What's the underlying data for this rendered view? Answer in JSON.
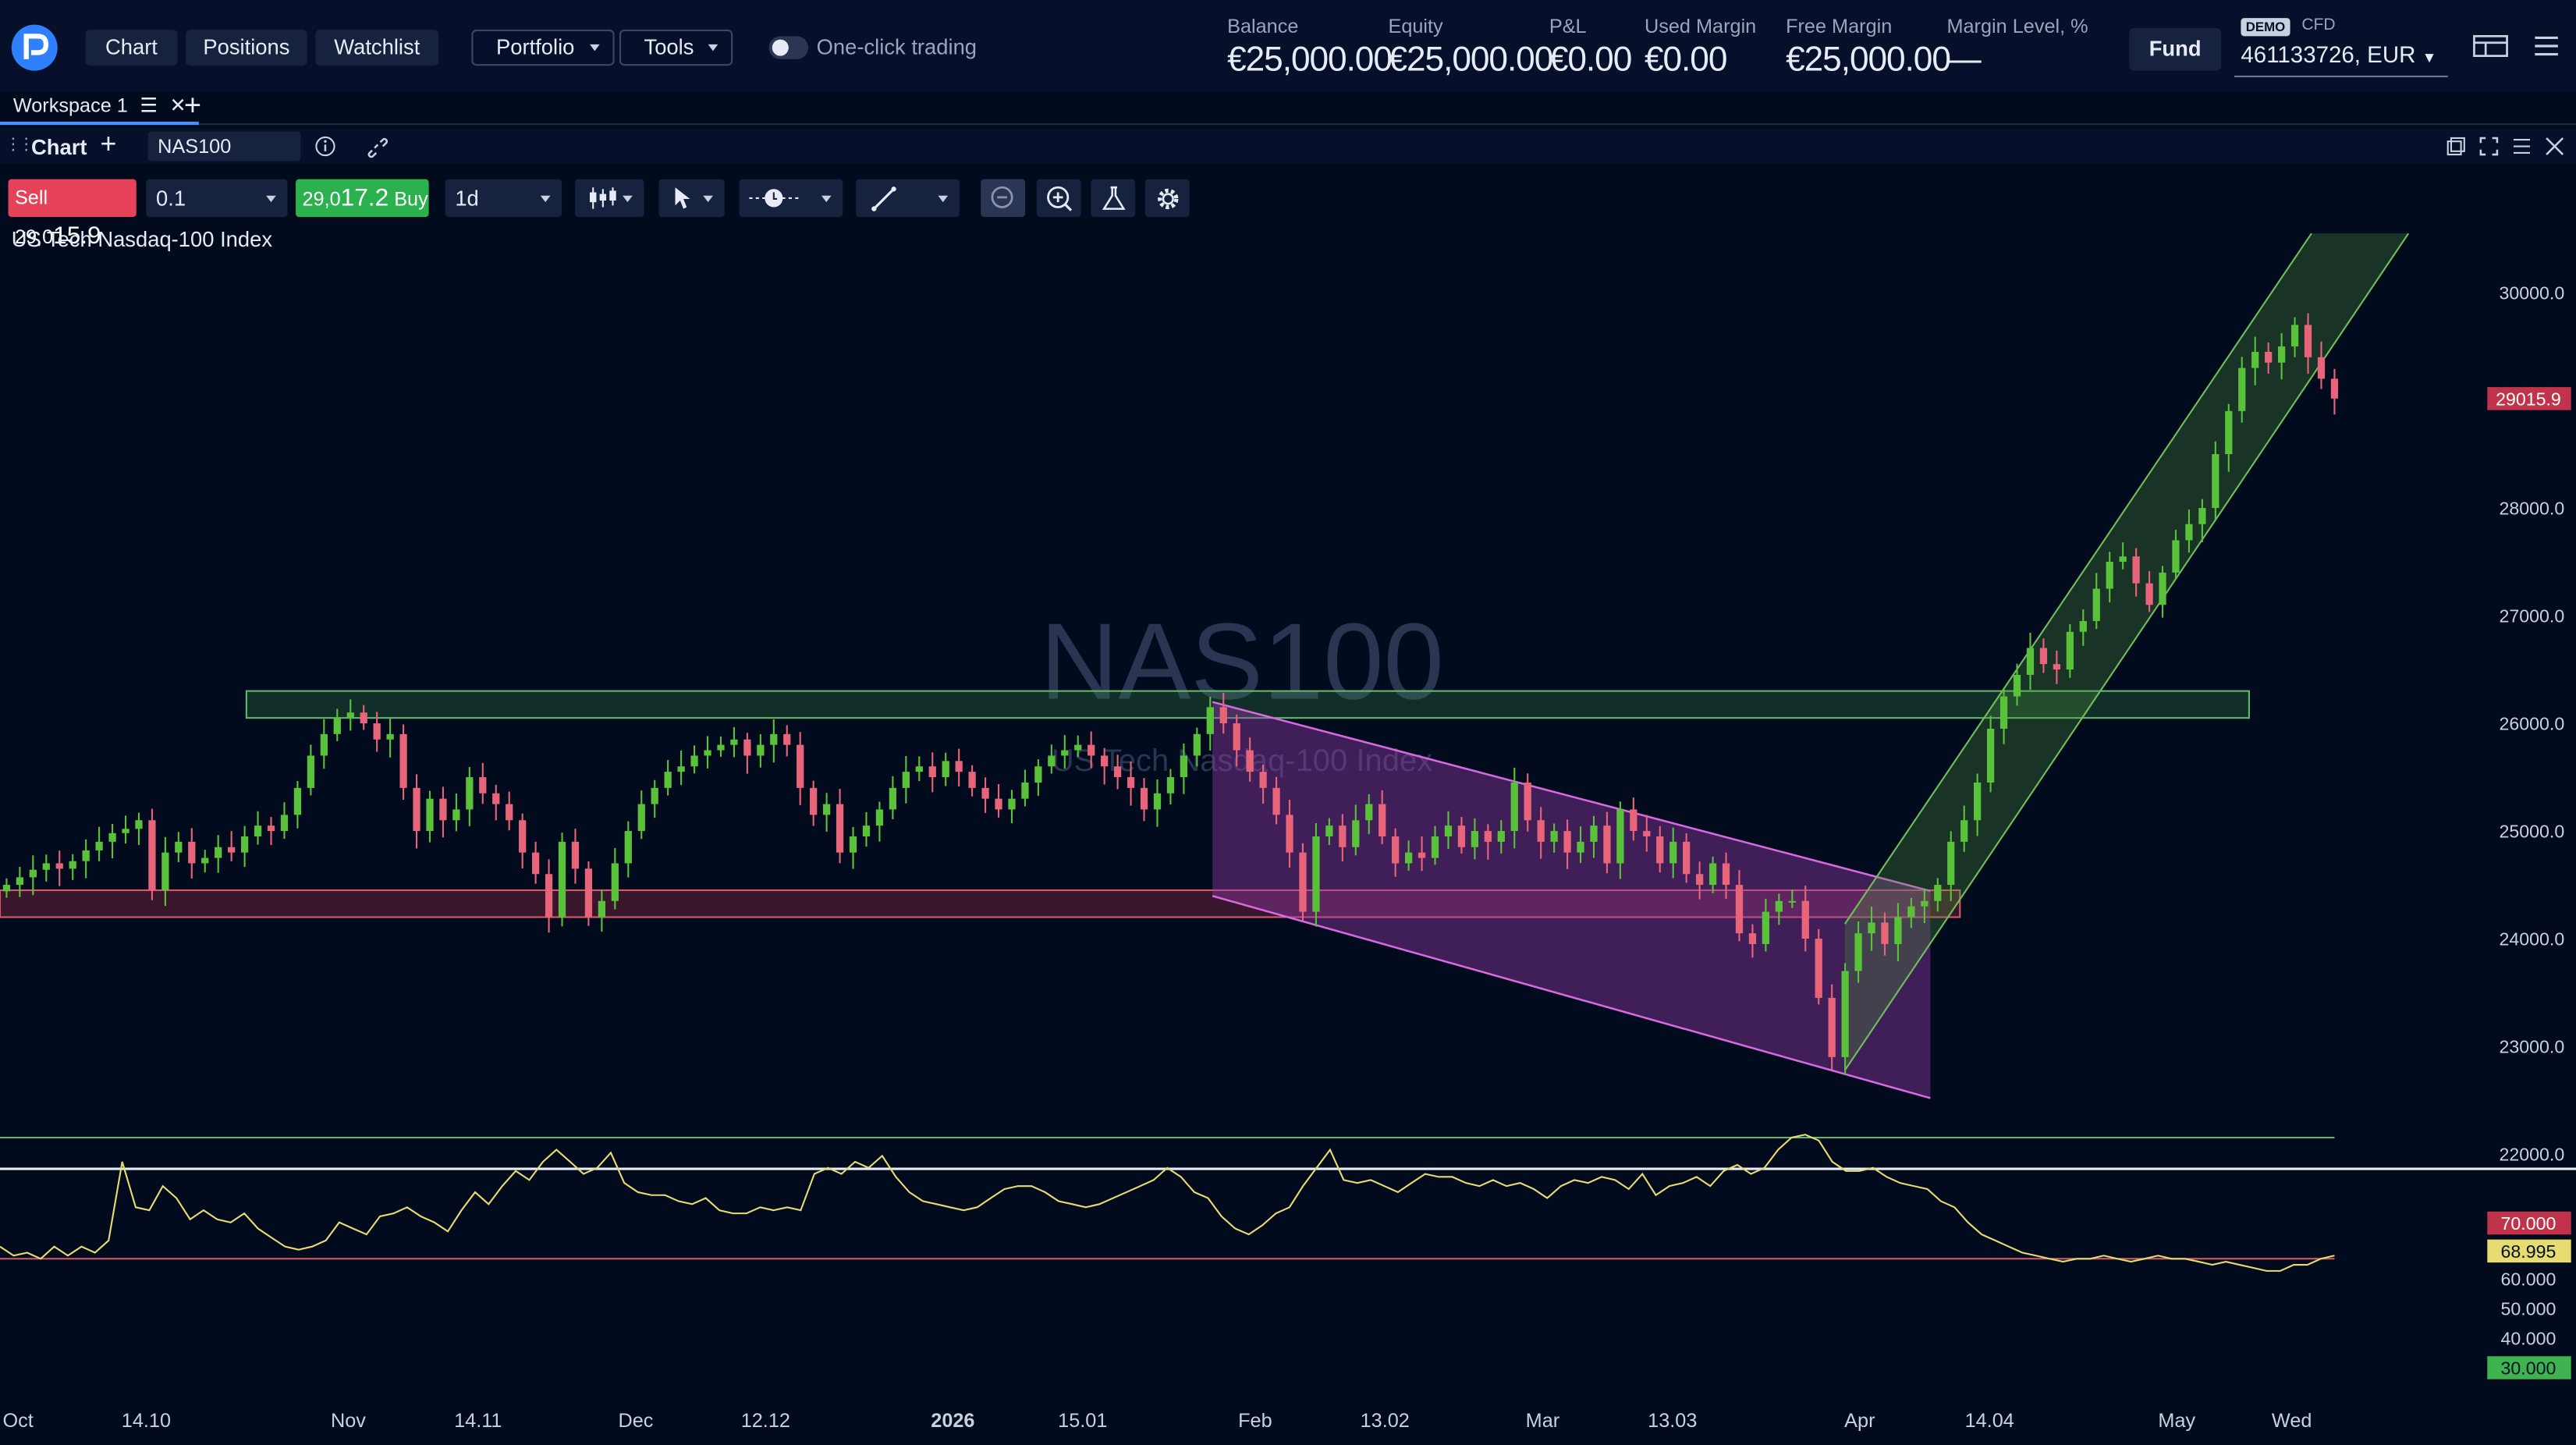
{
  "nav": {
    "chart": "Chart",
    "positions": "Positions",
    "watchlist": "Watchlist",
    "portfolio": "Portfolio",
    "tools": "Tools",
    "one_click": "One-click trading"
  },
  "account": {
    "metrics": [
      {
        "label": "Balance",
        "value": "€25,000.00"
      },
      {
        "label": "Equity",
        "value": "€25,000.00"
      },
      {
        "label": "P&L",
        "value": "€0.00"
      },
      {
        "label": "Used Margin",
        "value": "€0.00"
      },
      {
        "label": "Free Margin",
        "value": "€25,000.00"
      },
      {
        "label": "Margin Level, %",
        "value": "—"
      }
    ],
    "fund": "Fund",
    "demo": "DEMO",
    "cfd": "CFD",
    "id": "461133726, EUR"
  },
  "workspace": {
    "tab": "Workspace 1"
  },
  "chart_header": {
    "title": "Chart",
    "symbol": "NAS100"
  },
  "toolbar": {
    "sell_prefix": "Sell 29,0",
    "sell_big": "15.9",
    "buy_prefix": "29,0",
    "buy_big": "17.2",
    "buy_suffix": " Buy",
    "quantity": "0.1",
    "timeframe": "1d"
  },
  "instrument": {
    "name": "US Tech Nasdaq-100 Index",
    "watermark": "NAS100"
  },
  "chart_data": {
    "type": "candlestick",
    "title": "US Tech Nasdaq-100 Index",
    "ylim": [
      22000,
      30500
    ],
    "y_ticks": [
      "30000.0",
      "29000.0",
      "28000.0",
      "27000.0",
      "26000.0",
      "25000.0",
      "24000.0",
      "23000.0",
      "22000.0"
    ],
    "x_ticks": [
      "Oct",
      "14.10",
      "Nov",
      "14.11",
      "Dec",
      "12.12",
      "2026",
      "15.01",
      "Feb",
      "13.02",
      "Mar",
      "13.03",
      "Apr",
      "14.04",
      "May",
      "Wed"
    ],
    "last_price": "29015.9",
    "zones": [
      {
        "type": "resistance",
        "from": 26050,
        "to": 26300
      },
      {
        "type": "support",
        "from": 24200,
        "to": 24450
      }
    ],
    "close": [
      24500,
      24570,
      24640,
      24700,
      24650,
      24720,
      24820,
      24900,
      24980,
      25020,
      25100,
      24450,
      24800,
      24900,
      24700,
      24750,
      24850,
      24800,
      24950,
      25050,
      25000,
      25150,
      25400,
      25700,
      25900,
      26050,
      26100,
      26000,
      25850,
      25900,
      25400,
      25000,
      25300,
      25100,
      25200,
      25500,
      25350,
      25250,
      25100,
      24800,
      24600,
      24200,
      24900,
      24650,
      24200,
      24350,
      24700,
      25000,
      25250,
      25400,
      25550,
      25600,
      25700,
      25750,
      25800,
      25850,
      25700,
      25800,
      25900,
      25800,
      25400,
      25150,
      25250,
      24800,
      24950,
      25050,
      25200,
      25400,
      25550,
      25600,
      25500,
      25650,
      25550,
      25400,
      25300,
      25200,
      25300,
      25450,
      25600,
      25700,
      25750,
      25800,
      25700,
      25600,
      25500,
      25400,
      25200,
      25350,
      25500,
      25700,
      25900,
      26150,
      26000,
      25750,
      25550,
      25400,
      25150,
      24800,
      24250,
      24950,
      25050,
      24850,
      25100,
      25250,
      24950,
      24700,
      24800,
      24750,
      24950,
      25050,
      24850,
      25000,
      24900,
      25000,
      25450,
      25100,
      24900,
      25000,
      24800,
      24900,
      25050,
      24700,
      25200,
      25000,
      24950,
      24700,
      24900,
      24600,
      24500,
      24700,
      24500,
      24050,
      23950,
      24250,
      24350,
      24350,
      24000,
      23450,
      22900,
      23700,
      24050,
      24150,
      23950,
      24200,
      24300,
      24350,
      24500,
      24900,
      25100,
      25450,
      25950,
      26250,
      26450,
      26700,
      26550,
      26500,
      26850,
      26950,
      27250,
      27500,
      27550,
      27300,
      27100,
      27400,
      27700,
      27850,
      28000,
      28500,
      28900,
      29300,
      29450,
      29350,
      29500,
      29700,
      29400,
      29200,
      29015.9
    ],
    "rsi": {
      "levels": [
        70,
        30
      ],
      "current_level": "68.995",
      "labels": [
        "70.000",
        "68.995",
        "60.000",
        "50.000",
        "40.000",
        "30.000"
      ],
      "values": [
        66,
        69,
        68,
        70,
        66,
        69,
        66,
        68,
        64,
        38,
        53,
        54,
        46,
        50,
        57,
        54,
        57,
        58,
        55,
        60,
        63,
        66,
        67,
        66,
        64,
        58,
        60,
        62,
        56,
        55,
        53,
        56,
        58,
        61,
        54,
        48,
        52,
        46,
        41,
        44,
        38,
        34,
        38,
        42,
        40,
        35,
        45,
        48,
        49,
        49,
        51,
        52,
        50,
        54,
        55,
        55,
        53,
        54,
        53,
        54,
        42,
        40,
        42,
        38,
        40,
        36,
        43,
        48,
        51,
        52,
        53,
        54,
        53,
        50,
        47,
        46,
        46,
        48,
        51,
        52,
        53,
        52,
        50,
        48,
        46,
        44,
        40,
        43,
        48,
        50,
        56,
        60,
        62,
        59,
        55,
        53,
        46,
        40,
        34,
        44,
        45,
        44,
        46,
        48,
        45,
        42,
        43,
        43,
        45,
        46,
        44,
        46,
        45,
        47,
        50,
        46,
        44,
        45,
        43,
        44,
        47,
        42,
        49,
        46,
        45,
        43,
        46,
        41,
        39,
        42,
        40,
        34,
        30,
        29,
        31,
        38,
        41,
        41,
        40,
        43,
        45,
        46,
        47,
        51,
        53,
        58,
        62,
        64,
        66,
        68,
        69,
        70,
        71,
        70,
        70,
        69,
        70,
        71,
        70,
        69,
        70,
        70,
        71,
        72,
        71,
        72,
        73,
        74,
        74,
        72,
        72,
        70,
        69
      ]
    }
  }
}
